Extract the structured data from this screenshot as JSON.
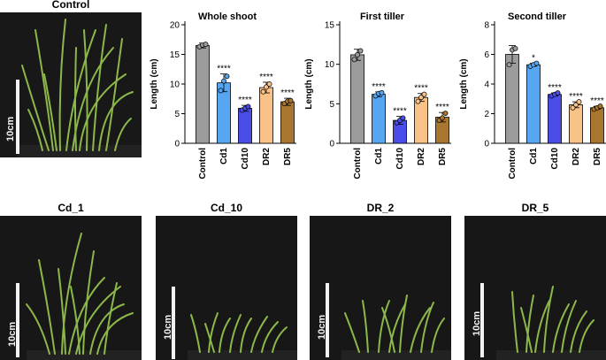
{
  "photos": {
    "control": {
      "title": "Control",
      "scale_label": "10cm"
    },
    "cd1": {
      "title": "Cd_1",
      "scale_label": "10cm"
    },
    "cd10": {
      "title": "Cd_10",
      "scale_label": "10cm"
    },
    "dr2": {
      "title": "DR_2",
      "scale_label": "10cm"
    },
    "dr5": {
      "title": "DR_5",
      "scale_label": "10cm"
    }
  },
  "chart_data": [
    {
      "type": "bar",
      "title": "Whole shoot",
      "ylabel": "Length (cm)",
      "xlabel": "",
      "ylim": [
        0,
        20
      ],
      "yticks": [
        0,
        5,
        10,
        15,
        20
      ],
      "categories": [
        "Control",
        "Cd1",
        "Cd10",
        "DR2",
        "DR5"
      ],
      "values": [
        16.5,
        10.2,
        5.9,
        9.4,
        7.0
      ],
      "errors": [
        0.4,
        1.5,
        0.5,
        0.9,
        0.6
      ],
      "points": [
        [
          16.3,
          16.6,
          16.7
        ],
        [
          8.9,
          10.5,
          11.3
        ],
        [
          5.6,
          5.9,
          6.2
        ],
        [
          8.7,
          9.5,
          10.0
        ],
        [
          6.7,
          7.1,
          7.2
        ]
      ],
      "significance": [
        "",
        "****",
        "****",
        "****",
        "****"
      ],
      "colors": [
        "#9b9b9b",
        "#57a6f2",
        "#4b4de8",
        "#f9c289",
        "#a8762e"
      ]
    },
    {
      "type": "bar",
      "title": "First tiller",
      "ylabel": "Length (cm)",
      "xlabel": "",
      "ylim": [
        0,
        15
      ],
      "yticks": [
        0,
        5,
        10,
        15
      ],
      "categories": [
        "Control",
        "Cd1",
        "Cd10",
        "DR2",
        "DR5"
      ],
      "values": [
        11.2,
        6.2,
        2.9,
        5.8,
        3.3
      ],
      "errors": [
        0.7,
        0.3,
        0.5,
        0.5,
        0.6
      ],
      "points": [
        [
          10.6,
          11.2,
          11.7
        ],
        [
          6.0,
          6.3,
          6.4
        ],
        [
          2.6,
          2.9,
          3.2
        ],
        [
          5.3,
          5.8,
          6.2
        ],
        [
          2.9,
          3.2,
          3.8
        ]
      ],
      "significance": [
        "",
        "****",
        "****",
        "****",
        "****"
      ],
      "colors": [
        "#9b9b9b",
        "#57a6f2",
        "#4b4de8",
        "#f9c289",
        "#a8762e"
      ]
    },
    {
      "type": "bar",
      "title": "Second tiller",
      "ylabel": "Length (cm)",
      "xlabel": "",
      "ylim": [
        0,
        8
      ],
      "yticks": [
        0,
        2,
        4,
        6,
        8
      ],
      "categories": [
        "Control",
        "Cd1",
        "Cd10",
        "DR2",
        "DR5"
      ],
      "values": [
        6.0,
        5.3,
        3.3,
        2.6,
        2.4
      ],
      "errors": [
        0.6,
        0.1,
        0.1,
        0.2,
        0.1
      ],
      "points": [
        [
          5.3,
          6.3,
          6.4
        ],
        [
          5.2,
          5.3,
          5.4
        ],
        [
          3.2,
          3.3,
          3.4
        ],
        [
          2.4,
          2.6,
          2.8
        ],
        [
          2.3,
          2.4,
          2.5
        ]
      ],
      "significance": [
        "",
        "*",
        "****",
        "****",
        "****"
      ],
      "colors": [
        "#9b9b9b",
        "#57a6f2",
        "#4b4de8",
        "#f9c289",
        "#a8762e"
      ]
    }
  ]
}
